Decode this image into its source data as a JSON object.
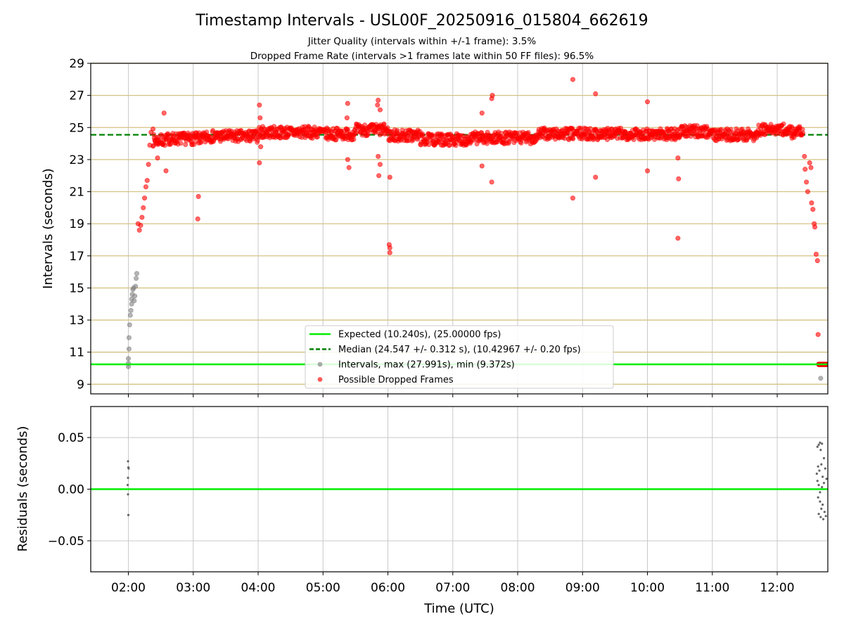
{
  "chart_data": [
    {
      "type": "scatter",
      "title": "Timestamp Intervals - USL00F_20250916_015804_662619",
      "subtitle_lines": [
        "Jitter Quality (intervals within +/-1 frame): 3.5%",
        "Dropped Frame Rate (intervals >1 frames late within 50 FF files): 96.5%"
      ],
      "ylabel": "Intervals (seconds)",
      "ylim": [
        8.4,
        29
      ],
      "yticks": [
        9,
        11,
        13,
        15,
        17,
        19,
        21,
        23,
        25,
        27,
        29
      ],
      "ytick_labels": [
        "9",
        "11",
        "13",
        "15",
        "17",
        "19",
        "21",
        "23",
        "25",
        "27",
        "29"
      ],
      "xlim_hours": [
        1.42,
        12.78
      ],
      "grid": "on",
      "legend_position": "lower-center",
      "reference_lines": [
        {
          "name": "Expected (10.240s), (25.00000 fps)",
          "value": 10.24,
          "color": "#00ee00",
          "style": "solid"
        },
        {
          "name": "Median (24.547 +/- 0.312 s), (10.42967 +/- 0.20 fps)",
          "value": 24.547,
          "color": "#008000",
          "style": "dashed"
        }
      ],
      "series": [
        {
          "name": "Intervals, max (27.991s), min (9.372s)",
          "color": "#808080",
          "points": [
            {
              "x": 2.0,
              "y": 10.1
            },
            {
              "x": 2.0,
              "y": 10.3
            },
            {
              "x": 2.0,
              "y": 10.6
            },
            {
              "x": 2.01,
              "y": 11.2
            },
            {
              "x": 2.01,
              "y": 11.9
            },
            {
              "x": 2.02,
              "y": 12.7
            },
            {
              "x": 2.03,
              "y": 13.3
            },
            {
              "x": 2.04,
              "y": 13.6
            },
            {
              "x": 2.05,
              "y": 14.0
            },
            {
              "x": 2.05,
              "y": 14.3
            },
            {
              "x": 2.06,
              "y": 14.6
            },
            {
              "x": 2.07,
              "y": 14.9
            },
            {
              "x": 2.08,
              "y": 15.0
            },
            {
              "x": 2.09,
              "y": 14.2
            },
            {
              "x": 2.1,
              "y": 14.5
            },
            {
              "x": 2.11,
              "y": 15.1
            },
            {
              "x": 2.12,
              "y": 15.6
            },
            {
              "x": 2.13,
              "y": 15.9
            },
            {
              "x": 12.67,
              "y": 9.372
            }
          ]
        },
        {
          "name": "Possible Dropped Frames",
          "color": "#ff0000",
          "points": [
            {
              "x": 2.15,
              "y": 19.0
            },
            {
              "x": 2.17,
              "y": 18.6
            },
            {
              "x": 2.19,
              "y": 18.9
            },
            {
              "x": 2.21,
              "y": 19.4
            },
            {
              "x": 2.23,
              "y": 20.0
            },
            {
              "x": 2.25,
              "y": 20.6
            },
            {
              "x": 2.27,
              "y": 21.3
            },
            {
              "x": 2.29,
              "y": 21.7
            },
            {
              "x": 2.31,
              "y": 22.7
            },
            {
              "x": 2.33,
              "y": 23.9
            },
            {
              "x": 2.35,
              "y": 24.7
            },
            {
              "x": 2.38,
              "y": 24.9
            },
            {
              "x": 2.45,
              "y": 23.1
            },
            {
              "x": 2.55,
              "y": 25.9
            },
            {
              "x": 2.58,
              "y": 22.3
            },
            {
              "x": 3.08,
              "y": 20.7
            },
            {
              "x": 3.07,
              "y": 19.3
            },
            {
              "x": 4.02,
              "y": 26.4
            },
            {
              "x": 4.03,
              "y": 25.6
            },
            {
              "x": 4.04,
              "y": 23.8
            },
            {
              "x": 4.02,
              "y": 22.8
            },
            {
              "x": 5.38,
              "y": 26.5
            },
            {
              "x": 5.37,
              "y": 25.6
            },
            {
              "x": 5.38,
              "y": 23.0
            },
            {
              "x": 5.4,
              "y": 22.5
            },
            {
              "x": 5.85,
              "y": 26.7
            },
            {
              "x": 5.84,
              "y": 26.4
            },
            {
              "x": 5.88,
              "y": 26.1
            },
            {
              "x": 5.85,
              "y": 23.2
            },
            {
              "x": 5.88,
              "y": 22.7
            },
            {
              "x": 5.86,
              "y": 22.0
            },
            {
              "x": 6.03,
              "y": 21.9
            },
            {
              "x": 6.02,
              "y": 17.7
            },
            {
              "x": 6.03,
              "y": 17.5
            },
            {
              "x": 6.03,
              "y": 17.2
            },
            {
              "x": 7.45,
              "y": 25.9
            },
            {
              "x": 7.6,
              "y": 26.8
            },
            {
              "x": 7.61,
              "y": 27.0
            },
            {
              "x": 7.45,
              "y": 22.6
            },
            {
              "x": 7.6,
              "y": 21.6
            },
            {
              "x": 8.85,
              "y": 27.991
            },
            {
              "x": 9.2,
              "y": 27.1
            },
            {
              "x": 8.85,
              "y": 20.6
            },
            {
              "x": 9.2,
              "y": 21.9
            },
            {
              "x": 10.0,
              "y": 26.6
            },
            {
              "x": 10.0,
              "y": 22.3
            },
            {
              "x": 10.47,
              "y": 23.1
            },
            {
              "x": 10.48,
              "y": 21.8
            },
            {
              "x": 10.47,
              "y": 18.1
            },
            {
              "x": 12.42,
              "y": 23.2
            },
            {
              "x": 12.43,
              "y": 22.4
            },
            {
              "x": 12.45,
              "y": 21.6
            },
            {
              "x": 12.47,
              "y": 21.0
            },
            {
              "x": 12.5,
              "y": 22.8
            },
            {
              "x": 12.52,
              "y": 22.5
            },
            {
              "x": 12.53,
              "y": 20.3
            },
            {
              "x": 12.55,
              "y": 19.9
            },
            {
              "x": 12.57,
              "y": 19.0
            },
            {
              "x": 12.58,
              "y": 18.8
            },
            {
              "x": 12.6,
              "y": 17.1
            },
            {
              "x": 12.62,
              "y": 16.7
            },
            {
              "x": 12.63,
              "y": 12.1
            }
          ]
        }
      ]
    },
    {
      "type": "scatter",
      "ylabel": "Residuals (seconds)",
      "xlabel": "Time (UTC)",
      "ylim": [
        -0.08,
        0.08
      ],
      "yticks": [
        0.05,
        0.0,
        -0.05
      ],
      "ytick_labels": [
        "0.05",
        "0.00",
        "−0.05"
      ],
      "xlim_hours": [
        1.42,
        12.78
      ],
      "xticks_hours": [
        2,
        3,
        4,
        5,
        6,
        7,
        8,
        9,
        10,
        11,
        12
      ],
      "xtick_labels": [
        "02:00",
        "03:00",
        "04:00",
        "05:00",
        "06:00",
        "07:00",
        "08:00",
        "09:00",
        "10:00",
        "11:00",
        "12:00"
      ],
      "grid": "on",
      "zero_line_color": "#00ee00",
      "series": [
        {
          "color": "#666666",
          "points": [
            {
              "x": 1.995,
              "y": 0.027
            },
            {
              "x": 2.0,
              "y": 0.021
            },
            {
              "x": 2.005,
              "y": 0.02
            },
            {
              "x": 1.995,
              "y": 0.011
            },
            {
              "x": 1.99,
              "y": 0.004
            },
            {
              "x": 1.995,
              "y": -0.005
            },
            {
              "x": 2.0,
              "y": -0.025
            },
            {
              "x": 12.62,
              "y": 0.041
            },
            {
              "x": 12.64,
              "y": 0.043
            },
            {
              "x": 12.66,
              "y": 0.045
            },
            {
              "x": 12.67,
              "y": 0.038
            },
            {
              "x": 12.69,
              "y": 0.044
            },
            {
              "x": 12.72,
              "y": 0.03
            },
            {
              "x": 12.63,
              "y": 0.022
            },
            {
              "x": 12.65,
              "y": 0.018
            },
            {
              "x": 12.68,
              "y": 0.024
            },
            {
              "x": 12.7,
              "y": 0.012
            },
            {
              "x": 12.74,
              "y": 0.02
            },
            {
              "x": 12.62,
              "y": 0.008
            },
            {
              "x": 12.64,
              "y": 0.004
            },
            {
              "x": 12.66,
              "y": -0.003
            },
            {
              "x": 12.69,
              "y": 0.002
            },
            {
              "x": 12.72,
              "y": 0.006
            },
            {
              "x": 12.63,
              "y": -0.008
            },
            {
              "x": 12.66,
              "y": -0.012
            },
            {
              "x": 12.68,
              "y": -0.019
            },
            {
              "x": 12.7,
              "y": -0.015
            },
            {
              "x": 12.73,
              "y": -0.022
            },
            {
              "x": 12.64,
              "y": -0.024
            },
            {
              "x": 12.67,
              "y": -0.027
            },
            {
              "x": 12.71,
              "y": -0.029
            },
            {
              "x": 12.75,
              "y": -0.026
            },
            {
              "x": 12.76,
              "y": 0.01
            },
            {
              "x": 12.61,
              "y": 0.015
            }
          ]
        }
      ]
    }
  ]
}
